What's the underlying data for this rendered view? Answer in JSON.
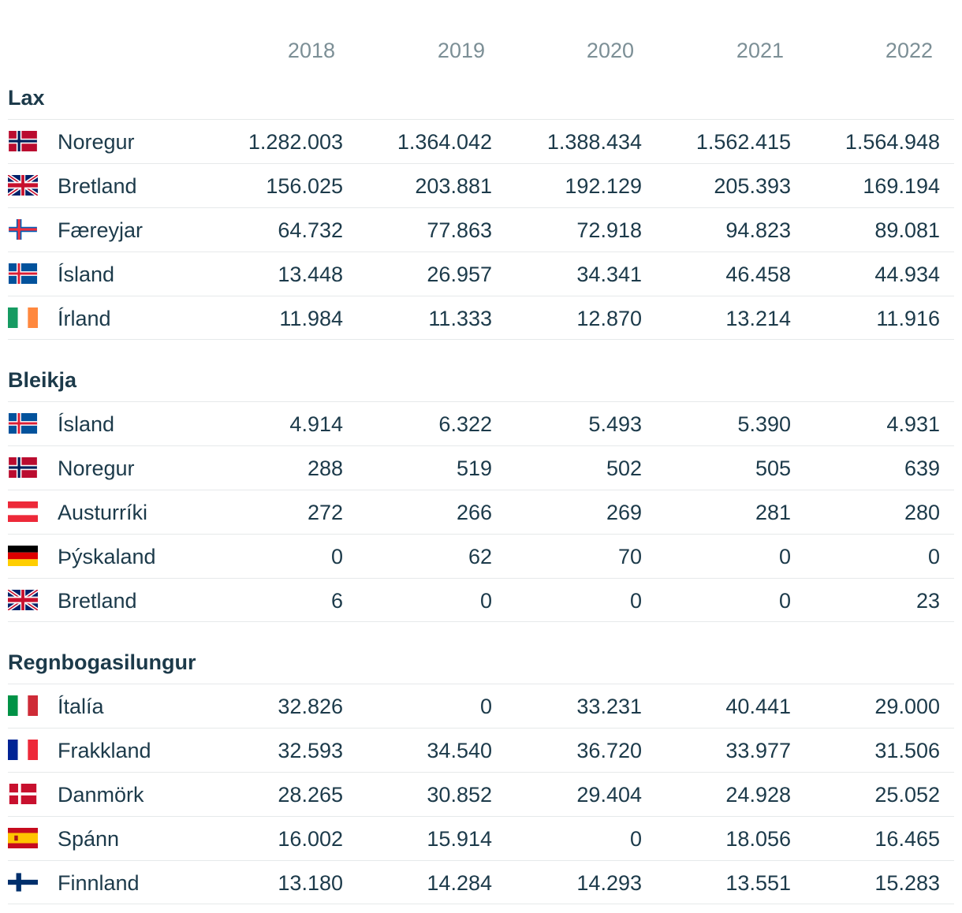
{
  "chart_data": {
    "type": "table",
    "columns": [
      "2018",
      "2019",
      "2020",
      "2021",
      "2022"
    ],
    "groups": [
      {
        "name": "Lax",
        "rows": [
          {
            "country": "Noregur",
            "flag": "norway-flag",
            "values": [
              "1.282.003",
              "1.364.042",
              "1.388.434",
              "1.562.415",
              "1.564.948"
            ]
          },
          {
            "country": "Bretland",
            "flag": "uk-flag",
            "values": [
              "156.025",
              "203.881",
              "192.129",
              "205.393",
              "169.194"
            ]
          },
          {
            "country": "Færeyjar",
            "flag": "faroe-flag",
            "values": [
              "64.732",
              "77.863",
              "72.918",
              "94.823",
              "89.081"
            ]
          },
          {
            "country": "Ísland",
            "flag": "iceland-flag",
            "values": [
              "13.448",
              "26.957",
              "34.341",
              "46.458",
              "44.934"
            ]
          },
          {
            "country": "Írland",
            "flag": "ireland-flag",
            "values": [
              "11.984",
              "11.333",
              "12.870",
              "13.214",
              "11.916"
            ]
          }
        ]
      },
      {
        "name": "Bleikja",
        "rows": [
          {
            "country": "Ísland",
            "flag": "iceland-flag",
            "values": [
              "4.914",
              "6.322",
              "5.493",
              "5.390",
              "4.931"
            ]
          },
          {
            "country": "Noregur",
            "flag": "norway-flag",
            "values": [
              "288",
              "519",
              "502",
              "505",
              "639"
            ]
          },
          {
            "country": "Austurríki",
            "flag": "austria-flag",
            "values": [
              "272",
              "266",
              "269",
              "281",
              "280"
            ]
          },
          {
            "country": "Þýskaland",
            "flag": "germany-flag",
            "values": [
              "0",
              "62",
              "70",
              "0",
              "0"
            ]
          },
          {
            "country": "Bretland",
            "flag": "uk-flag",
            "values": [
              "6",
              "0",
              "0",
              "0",
              "23"
            ]
          }
        ]
      },
      {
        "name": "Regnbogasilungur",
        "rows": [
          {
            "country": "Ítalía",
            "flag": "italy-flag",
            "values": [
              "32.826",
              "0",
              "33.231",
              "40.441",
              "29.000"
            ]
          },
          {
            "country": "Frakkland",
            "flag": "france-flag",
            "values": [
              "32.593",
              "34.540",
              "36.720",
              "33.977",
              "31.506"
            ]
          },
          {
            "country": "Danmörk",
            "flag": "denmark-flag",
            "values": [
              "28.265",
              "30.852",
              "29.404",
              "24.928",
              "25.052"
            ]
          },
          {
            "country": "Spánn",
            "flag": "spain-flag",
            "values": [
              "16.002",
              "15.914",
              "0",
              "18.056",
              "16.465"
            ]
          },
          {
            "country": "Finnland",
            "flag": "finland-flag",
            "values": [
              "13.180",
              "14.284",
              "14.293",
              "13.551",
              "15.283"
            ]
          }
        ]
      }
    ]
  },
  "colors": {
    "text": "#1c3a4a",
    "header_text": "#7c8f96",
    "row_border": "#e6e9ea"
  }
}
